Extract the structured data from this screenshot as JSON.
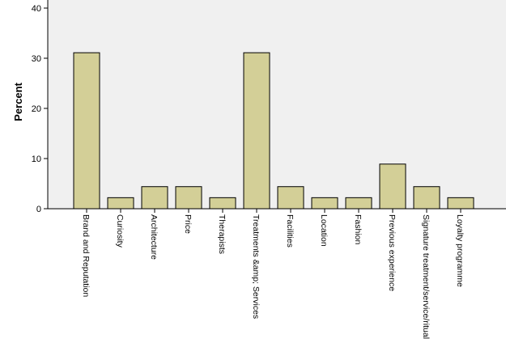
{
  "chart_data": {
    "type": "bar",
    "categories": [
      "Brand and Reputation",
      "Curiosity",
      "Architecture",
      "Price",
      "Therapists",
      "Treatments &amp; Services",
      "Facilities",
      "Location",
      "Fashion",
      "Previous experience",
      "Signature treatment/service/ritual",
      "Loyalty programme"
    ],
    "values": [
      31.1,
      2.2,
      4.4,
      4.4,
      2.2,
      31.1,
      4.4,
      2.2,
      2.2,
      8.9,
      4.4,
      2.2
    ],
    "ylabel": "Percent",
    "xlabel": "",
    "ylim": [
      0,
      40
    ],
    "yticks": [
      0,
      10,
      20,
      30,
      40
    ],
    "grid": false,
    "colors": {
      "bar_fill": "#d3cf97",
      "bar_stroke": "#000000",
      "plot_bg": "#f0f0f0",
      "axis": "#000000"
    }
  }
}
